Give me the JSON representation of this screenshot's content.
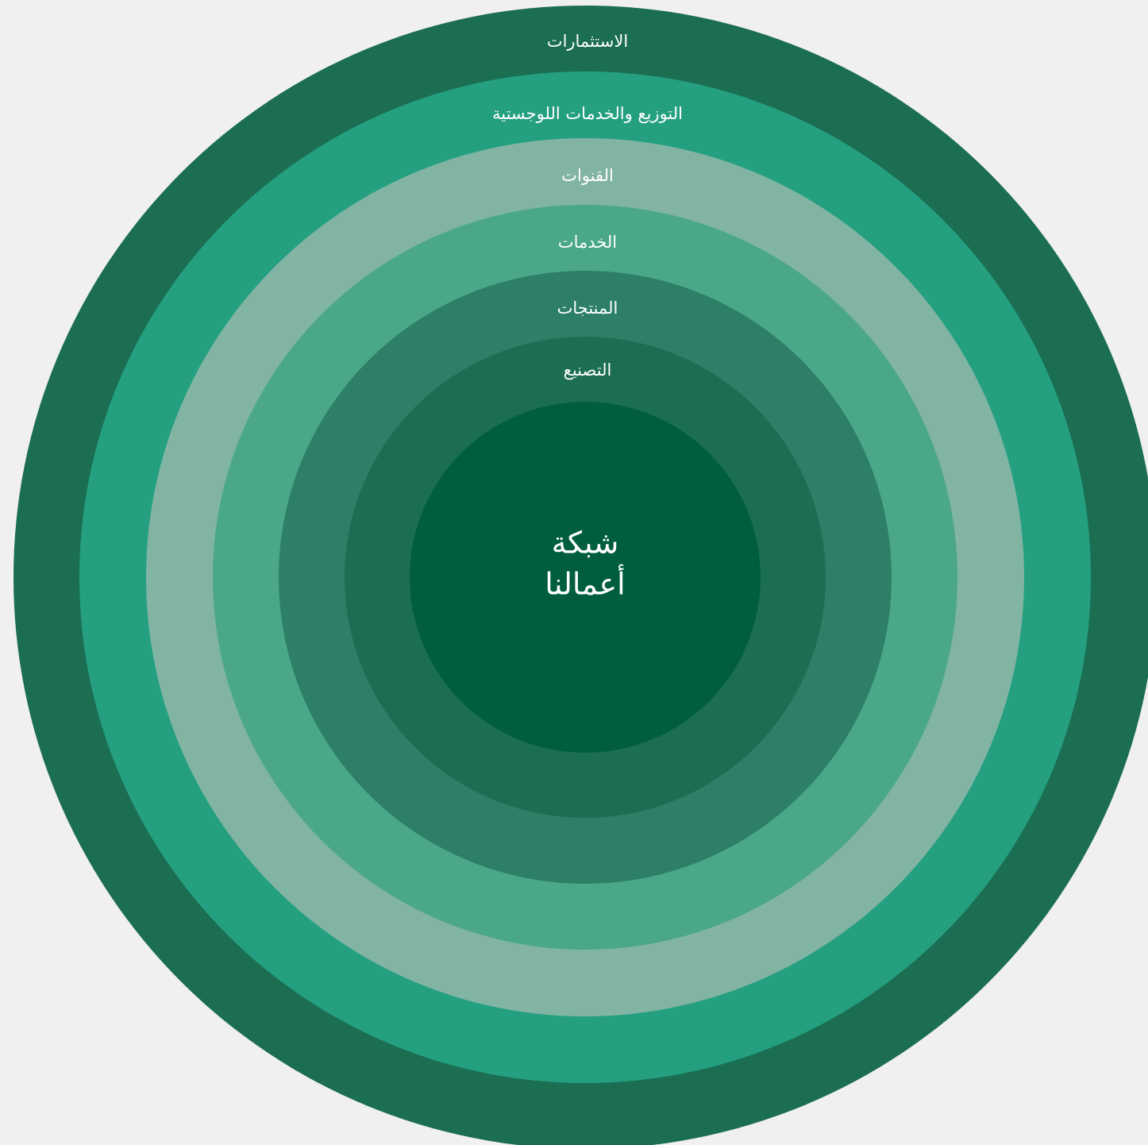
{
  "rings": [
    "الاستثمارات",
    "التوزيع والخدمات اللوجستية",
    "القنوات",
    "الخدمات",
    "المنتجات",
    "التصنيع"
  ],
  "center": {
    "lines": [
      "شبكة",
      "أعمالنا"
    ]
  }
}
